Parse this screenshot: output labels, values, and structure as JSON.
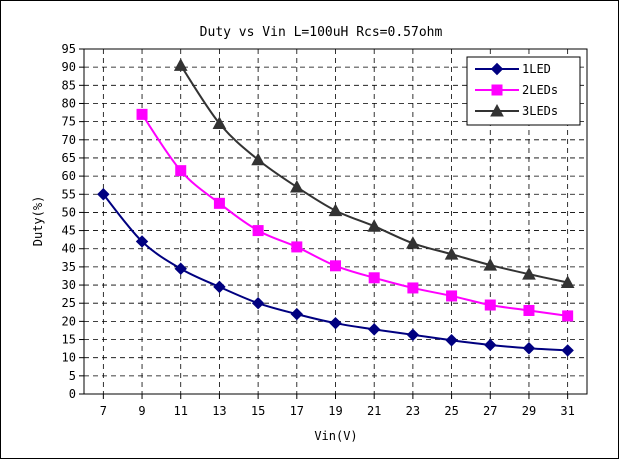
{
  "chart_data": {
    "type": "line",
    "title": "Duty vs Vin L=100uH Rcs=0.57ohm",
    "xlabel": "Vin(V)",
    "ylabel": "Duty(%)",
    "xlim": [
      6,
      32
    ],
    "ylim": [
      0,
      95
    ],
    "x_ticks": [
      "7",
      "9",
      "11",
      "13",
      "15",
      "17",
      "19",
      "21",
      "23",
      "25",
      "27",
      "29",
      "31"
    ],
    "y_ticks": [
      "0",
      "5",
      "10",
      "15",
      "20",
      "25",
      "30",
      "35",
      "40",
      "45",
      "50",
      "55",
      "60",
      "65",
      "70",
      "75",
      "80",
      "85",
      "90",
      "95"
    ],
    "grid": "dashed",
    "legend_position": "top-right",
    "series": [
      {
        "name": "1LED",
        "color": "#000080",
        "marker": "diamond",
        "x": [
          7,
          9,
          11,
          13,
          15,
          17,
          19,
          21,
          23,
          25,
          27,
          29,
          31
        ],
        "values": [
          55,
          42,
          34.5,
          29.5,
          25,
          22,
          19.5,
          17.8,
          16.3,
          14.8,
          13.5,
          12.6,
          12
        ]
      },
      {
        "name": "2LEDs",
        "color": "#FF00FF",
        "marker": "square",
        "x": [
          9,
          11,
          13,
          15,
          17,
          19,
          21,
          23,
          25,
          27,
          29,
          31
        ],
        "values": [
          77,
          61.5,
          52.5,
          45,
          40.5,
          35.3,
          32,
          29.2,
          27,
          24.5,
          23,
          21.5
        ]
      },
      {
        "name": "3LEDs",
        "color": "#333333",
        "marker": "triangle",
        "x": [
          11,
          13,
          15,
          17,
          19,
          21,
          23,
          25,
          27,
          29,
          31
        ],
        "values": [
          90.5,
          74.5,
          64.5,
          57,
          50.5,
          46.2,
          41.5,
          38.5,
          35.5,
          33,
          30.7
        ]
      }
    ]
  }
}
